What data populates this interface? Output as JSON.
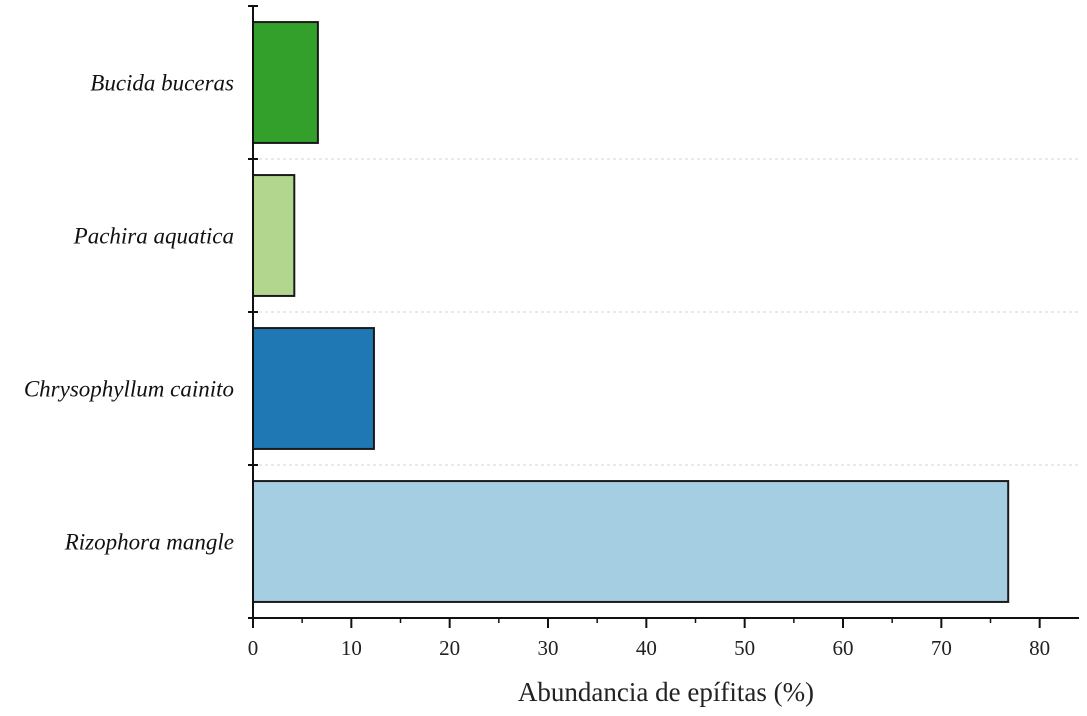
{
  "chart_data": {
    "type": "bar",
    "orientation": "horizontal",
    "title": "",
    "xlabel": "Abundancia de epífitas (%)",
    "ylabel": "",
    "xlim": [
      0,
      84
    ],
    "xticks": [
      0,
      10,
      20,
      30,
      40,
      50,
      60,
      70,
      80
    ],
    "xtick_labels": [
      "0",
      "10",
      "20",
      "30",
      "40",
      "50",
      "60",
      "70",
      "80"
    ],
    "grid": "dashed horizontal separators between categories",
    "categories": [
      "Bucida buceras",
      "Pachira aquatica",
      "Chrysophyllum cainito",
      "Rizophora mangle"
    ],
    "values": [
      6.6,
      4.2,
      12.3,
      76.8
    ],
    "colors": [
      "#33a02c",
      "#b2d68e",
      "#1f78b4",
      "#a6cee3"
    ],
    "edge_color": "#1a1a1a"
  }
}
